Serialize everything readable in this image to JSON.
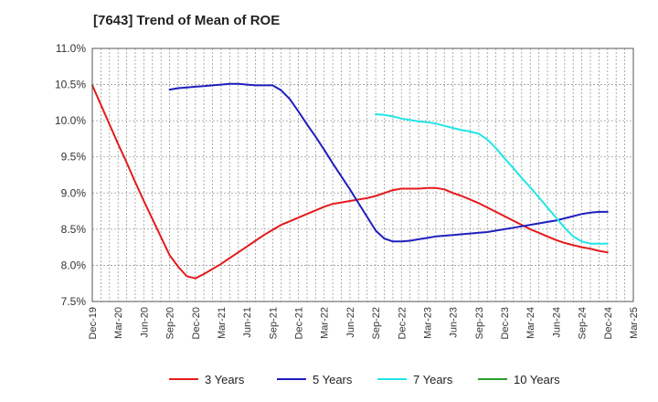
{
  "chart_data": {
    "type": "line",
    "title": "[7643]  Trend of Mean of ROE",
    "xlabel": "",
    "ylabel": "",
    "ylim": [
      7.5,
      11.0
    ],
    "yticks": [
      "7.5%",
      "8.0%",
      "8.5%",
      "9.0%",
      "9.5%",
      "10.0%",
      "10.5%",
      "11.0%"
    ],
    "x_tick_labels": [
      "Dec-19",
      "Mar-20",
      "Jun-20",
      "Sep-20",
      "Dec-20",
      "Mar-21",
      "Jun-21",
      "Sep-21",
      "Dec-21",
      "Mar-22",
      "Jun-22",
      "Sep-22",
      "Dec-22",
      "Mar-23",
      "Jun-23",
      "Sep-23",
      "Dec-23",
      "Mar-24",
      "Jun-24",
      "Sep-24",
      "Dec-24",
      "Mar-25"
    ],
    "grid": true,
    "legend_position": "bottom",
    "series": [
      {
        "name": "3 Years",
        "color": "#e41a1c",
        "points": [
          [
            "Dec-19",
            10.49
          ],
          [
            "Jan-20",
            10.22
          ],
          [
            "Feb-20",
            9.95
          ],
          [
            "Mar-20",
            9.68
          ],
          [
            "Apr-20",
            9.42
          ],
          [
            "May-20",
            9.15
          ],
          [
            "Jun-20",
            8.89
          ],
          [
            "Jul-20",
            8.64
          ],
          [
            "Aug-20",
            8.39
          ],
          [
            "Sep-20",
            8.14
          ],
          [
            "Oct-20",
            7.98
          ],
          [
            "Nov-20",
            7.85
          ],
          [
            "Dec-20",
            7.82
          ],
          [
            "Jan-21",
            7.88
          ],
          [
            "Feb-21",
            7.95
          ],
          [
            "Mar-21",
            8.02
          ],
          [
            "Apr-21",
            8.1
          ],
          [
            "May-21",
            8.18
          ],
          [
            "Jun-21",
            8.26
          ],
          [
            "Jul-21",
            8.34
          ],
          [
            "Aug-21",
            8.42
          ],
          [
            "Sep-21",
            8.49
          ],
          [
            "Oct-21",
            8.56
          ],
          [
            "Nov-21",
            8.61
          ],
          [
            "Dec-21",
            8.66
          ],
          [
            "Jan-22",
            8.71
          ],
          [
            "Feb-22",
            8.76
          ],
          [
            "Mar-22",
            8.81
          ],
          [
            "Apr-22",
            8.85
          ],
          [
            "May-22",
            8.87
          ],
          [
            "Jun-22",
            8.89
          ],
          [
            "Jul-22",
            8.91
          ],
          [
            "Aug-22",
            8.93
          ],
          [
            "Sep-22",
            8.96
          ],
          [
            "Oct-22",
            9.0
          ],
          [
            "Nov-22",
            9.04
          ],
          [
            "Dec-22",
            9.06
          ],
          [
            "Jan-23",
            9.06
          ],
          [
            "Feb-23",
            9.06
          ],
          [
            "Mar-23",
            9.07
          ],
          [
            "Apr-23",
            9.07
          ],
          [
            "May-23",
            9.05
          ],
          [
            "Jun-23",
            9.0
          ],
          [
            "Jul-23",
            8.96
          ],
          [
            "Aug-23",
            8.91
          ],
          [
            "Sep-23",
            8.86
          ],
          [
            "Oct-23",
            8.8
          ],
          [
            "Nov-23",
            8.74
          ],
          [
            "Dec-23",
            8.68
          ],
          [
            "Jan-24",
            8.62
          ],
          [
            "Feb-24",
            8.56
          ],
          [
            "Mar-24",
            8.5
          ],
          [
            "Apr-24",
            8.45
          ],
          [
            "May-24",
            8.4
          ],
          [
            "Jun-24",
            8.35
          ],
          [
            "Jul-24",
            8.31
          ],
          [
            "Aug-24",
            8.28
          ],
          [
            "Sep-24",
            8.25
          ],
          [
            "Oct-24",
            8.23
          ],
          [
            "Nov-24",
            8.2
          ],
          [
            "Dec-24",
            8.18
          ]
        ]
      },
      {
        "name": "5 Years",
        "color": "#1f1fbf",
        "points": [
          [
            "Sep-20",
            10.43
          ],
          [
            "Oct-20",
            10.45
          ],
          [
            "Nov-20",
            10.46
          ],
          [
            "Dec-20",
            10.47
          ],
          [
            "Jan-21",
            10.48
          ],
          [
            "Feb-21",
            10.49
          ],
          [
            "Mar-21",
            10.5
          ],
          [
            "Apr-21",
            10.51
          ],
          [
            "May-21",
            10.51
          ],
          [
            "Jun-21",
            10.5
          ],
          [
            "Jul-21",
            10.49
          ],
          [
            "Aug-21",
            10.49
          ],
          [
            "Sep-21",
            10.49
          ],
          [
            "Oct-21",
            10.42
          ],
          [
            "Nov-21",
            10.3
          ],
          [
            "Dec-21",
            10.13
          ],
          [
            "Jan-22",
            9.95
          ],
          [
            "Feb-22",
            9.78
          ],
          [
            "Mar-22",
            9.6
          ],
          [
            "Apr-22",
            9.41
          ],
          [
            "May-22",
            9.23
          ],
          [
            "Jun-22",
            9.05
          ],
          [
            "Jul-22",
            8.86
          ],
          [
            "Aug-22",
            8.67
          ],
          [
            "Sep-22",
            8.48
          ],
          [
            "Oct-22",
            8.37
          ],
          [
            "Nov-22",
            8.33
          ],
          [
            "Dec-22",
            8.33
          ],
          [
            "Jan-23",
            8.34
          ],
          [
            "Feb-23",
            8.36
          ],
          [
            "Mar-23",
            8.38
          ],
          [
            "Apr-23",
            8.4
          ],
          [
            "May-23",
            8.41
          ],
          [
            "Jun-23",
            8.42
          ],
          [
            "Jul-23",
            8.43
          ],
          [
            "Aug-23",
            8.44
          ],
          [
            "Sep-23",
            8.45
          ],
          [
            "Oct-23",
            8.46
          ],
          [
            "Nov-23",
            8.48
          ],
          [
            "Dec-23",
            8.5
          ],
          [
            "Jan-24",
            8.52
          ],
          [
            "Feb-24",
            8.54
          ],
          [
            "Mar-24",
            8.56
          ],
          [
            "Apr-24",
            8.58
          ],
          [
            "May-24",
            8.6
          ],
          [
            "Jun-24",
            8.62
          ],
          [
            "Jul-24",
            8.65
          ],
          [
            "Aug-24",
            8.68
          ],
          [
            "Sep-24",
            8.71
          ],
          [
            "Oct-24",
            8.73
          ],
          [
            "Nov-24",
            8.74
          ],
          [
            "Dec-24",
            8.74
          ]
        ]
      },
      {
        "name": "7 Years",
        "color": "#22e5e5",
        "points": [
          [
            "Sep-22",
            10.09
          ],
          [
            "Oct-22",
            10.08
          ],
          [
            "Nov-22",
            10.06
          ],
          [
            "Dec-22",
            10.03
          ],
          [
            "Jan-23",
            10.01
          ],
          [
            "Feb-23",
            9.99
          ],
          [
            "Mar-23",
            9.98
          ],
          [
            "Apr-23",
            9.96
          ],
          [
            "May-23",
            9.93
          ],
          [
            "Jun-23",
            9.9
          ],
          [
            "Jul-23",
            9.87
          ],
          [
            "Aug-23",
            9.85
          ],
          [
            "Sep-23",
            9.82
          ],
          [
            "Oct-23",
            9.74
          ],
          [
            "Nov-23",
            9.62
          ],
          [
            "Dec-23",
            9.48
          ],
          [
            "Jan-24",
            9.35
          ],
          [
            "Feb-24",
            9.21
          ],
          [
            "Mar-24",
            9.08
          ],
          [
            "Apr-24",
            8.94
          ],
          [
            "May-24",
            8.8
          ],
          [
            "Jun-24",
            8.66
          ],
          [
            "Jul-24",
            8.52
          ],
          [
            "Aug-24",
            8.4
          ],
          [
            "Sep-24",
            8.33
          ],
          [
            "Oct-24",
            8.3
          ],
          [
            "Nov-24",
            8.3
          ],
          [
            "Dec-24",
            8.3
          ]
        ]
      },
      {
        "name": "10 Years",
        "color": "#2ca02c",
        "points": []
      }
    ]
  }
}
